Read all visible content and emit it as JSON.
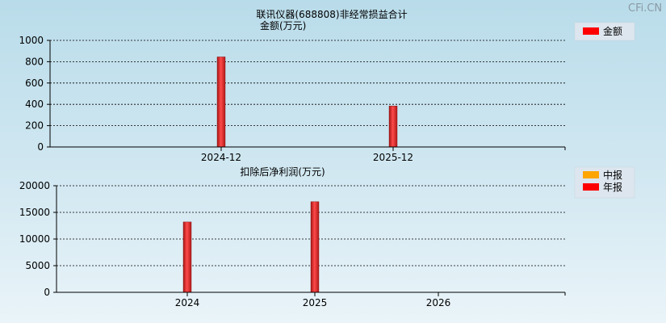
{
  "watermark": "CFi.CN",
  "chart_data": [
    {
      "type": "bar",
      "title": "联讯仪器(688808)非经常损益合计",
      "ylabel": "金额(万元)",
      "categories": [
        "2024-12",
        "2025-12"
      ],
      "series": [
        {
          "name": "金额",
          "color": "#ff0000",
          "values": [
            845,
            385
          ]
        }
      ],
      "ylim": [
        0,
        1000
      ],
      "yticks": [
        0,
        200,
        400,
        600,
        800,
        1000
      ],
      "legend": "top-right",
      "grid": true
    },
    {
      "type": "bar",
      "title": "扣除后净利润(万元)",
      "categories": [
        "2024",
        "2025",
        "2026"
      ],
      "series": [
        {
          "name": "中报",
          "color": "#ffa500",
          "values": [
            null,
            null,
            null
          ]
        },
        {
          "name": "年报",
          "color": "#ff0000",
          "values": [
            13200,
            17000,
            null
          ]
        }
      ],
      "ylim": [
        0,
        20000
      ],
      "yticks": [
        0,
        5000,
        10000,
        15000,
        20000
      ],
      "legend": "top-right",
      "grid": true
    }
  ]
}
